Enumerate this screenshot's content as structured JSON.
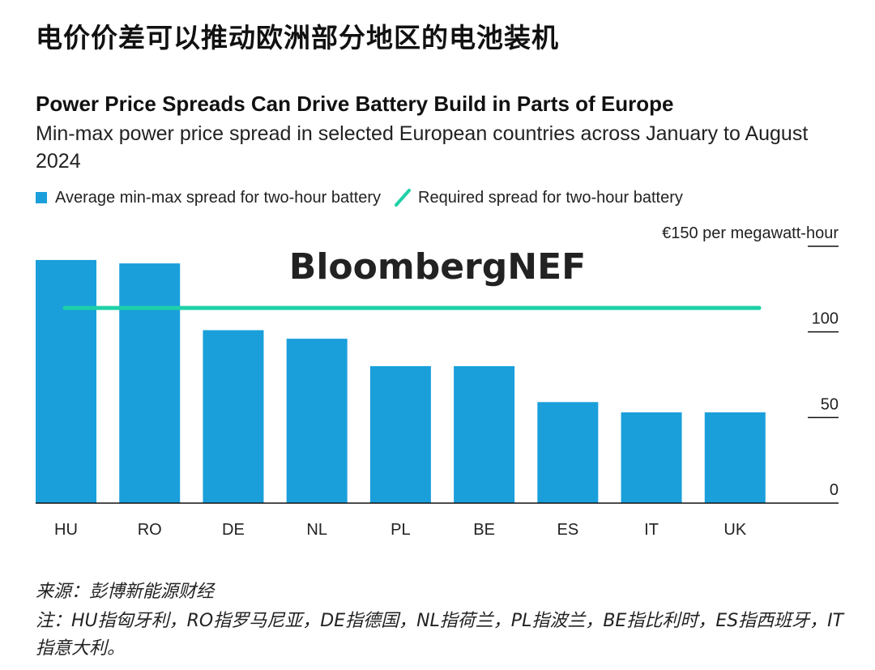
{
  "header": {
    "zh_title": "电价价差可以推动欧洲部分地区的电池装机",
    "en_title": "Power Price Spreads Can Drive Battery Build in Parts of Europe",
    "subtitle": "Min-max power price spread in selected European countries across January to August 2024"
  },
  "legend": {
    "bar_label": "Average min-max spread for two-hour battery",
    "line_label": "Required spread for two-hour battery"
  },
  "watermark": "BloombergNEF",
  "footer": {
    "source": "来源：彭博新能源财经",
    "note": "注：HU指匈牙利，RO指罗马尼亚，DE指德国，NL指荷兰，PL指波兰，BE指比利时，ES指西班牙，IT指意大利。"
  },
  "colors": {
    "bar": "#1a9fdb",
    "line": "#1fd0a8",
    "axis": "#111111"
  },
  "chart_data": {
    "type": "bar",
    "title": "Power Price Spreads Can Drive Battery Build in Parts of Europe",
    "categories": [
      "HU",
      "RO",
      "DE",
      "NL",
      "PL",
      "BE",
      "ES",
      "IT",
      "UK"
    ],
    "series": [
      {
        "name": "Average min-max spread for two-hour battery",
        "values": [
          142,
          140,
          101,
          96,
          80,
          80,
          59,
          53,
          53
        ]
      }
    ],
    "reference_line": {
      "name": "Required spread for two-hour battery",
      "value": 114
    },
    "ylim": [
      0,
      150
    ],
    "yticks": [
      {
        "value": 0,
        "label": "0"
      },
      {
        "value": 50,
        "label": "50"
      },
      {
        "value": 100,
        "label": "100"
      },
      {
        "value": 150,
        "label": "€150 per megawatt-hour"
      }
    ],
    "ylabel": "",
    "xlabel": ""
  }
}
